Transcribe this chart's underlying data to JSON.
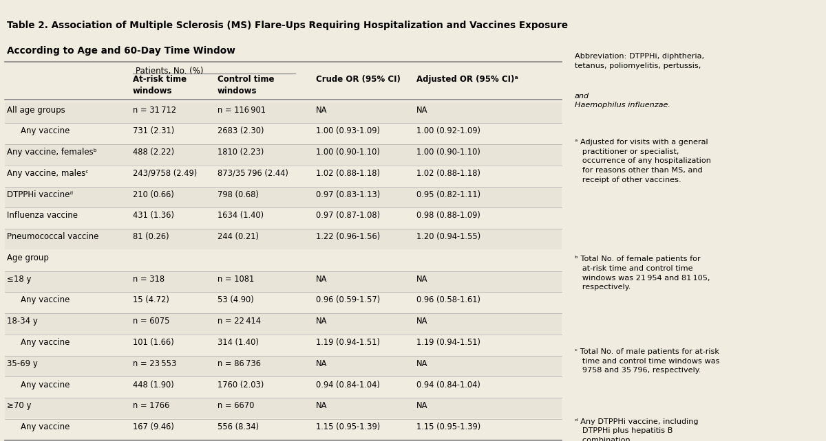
{
  "title_line1": "Table 2. Association of Multiple Sclerosis (MS) Flare-Ups Requiring Hospitalization and Vaccines Exposure",
  "title_line2": "According to Age and 60-Day Time Window",
  "red_bar_color": "#cc2222",
  "bg_color": "#f0ece0",
  "table_bg": "#f0ece0",
  "patients_header": "Patients, No. (%)",
  "col_headers": [
    "At-risk time\nwindows",
    "Control time\nwindows",
    "Crude OR (95% CI)",
    "Adjusted OR (95% CI)ᵃ"
  ],
  "rows": [
    {
      "label": "All age groups",
      "indent": 0,
      "col1": "n = 31 712",
      "col2": "n = 116 901",
      "col3": "NA",
      "col4": "NA",
      "is_subhead": true
    },
    {
      "label": "Any vaccine",
      "indent": 1,
      "col1": "731 (2.31)",
      "col2": "2683 (2.30)",
      "col3": "1.00 (0.93-1.09)",
      "col4": "1.00 (0.92-1.09)",
      "is_subhead": false
    },
    {
      "label": "Any vaccine, femalesᵇ",
      "indent": 0,
      "col1": "488 (2.22)",
      "col2": "1810 (2.23)",
      "col3": "1.00 (0.90-1.10)",
      "col4": "1.00 (0.90-1.10)",
      "is_subhead": false
    },
    {
      "label": "Any vaccine, malesᶜ",
      "indent": 0,
      "col1": "243/9758 (2.49)",
      "col2": "873/35 796 (2.44)",
      "col3": "1.02 (0.88-1.18)",
      "col4": "1.02 (0.88-1.18)",
      "is_subhead": false
    },
    {
      "label": "DTPPHi vaccineᵈ",
      "indent": 0,
      "col1": "210 (0.66)",
      "col2": "798 (0.68)",
      "col3": "0.97 (0.83-1.13)",
      "col4": "0.95 (0.82-1.11)",
      "is_subhead": false
    },
    {
      "label": "Influenza vaccine",
      "indent": 0,
      "col1": "431 (1.36)",
      "col2": "1634 (1.40)",
      "col3": "0.97 (0.87-1.08)",
      "col4": "0.98 (0.88-1.09)",
      "is_subhead": false
    },
    {
      "label": "Pneumococcal vaccine",
      "indent": 0,
      "col1": "81 (0.26)",
      "col2": "244 (0.21)",
      "col3": "1.22 (0.96-1.56)",
      "col4": "1.20 (0.94-1.55)",
      "is_subhead": false
    },
    {
      "label": "Age group",
      "indent": 0,
      "col1": "",
      "col2": "",
      "col3": "",
      "col4": "",
      "is_subhead": true,
      "no_line": true
    },
    {
      "label": "≤18 y",
      "indent": 0,
      "col1": "n = 318",
      "col2": "n = 1081",
      "col3": "NA",
      "col4": "NA",
      "is_subhead": true
    },
    {
      "label": "Any vaccine",
      "indent": 1,
      "col1": "15 (4.72)",
      "col2": "53 (4.90)",
      "col3": "0.96 (0.59-1.57)",
      "col4": "0.96 (0.58-1.61)",
      "is_subhead": false
    },
    {
      "label": "18-34 y",
      "indent": 0,
      "col1": "n = 6075",
      "col2": "n = 22 414",
      "col3": "NA",
      "col4": "NA",
      "is_subhead": true
    },
    {
      "label": "Any vaccine",
      "indent": 1,
      "col1": "101 (1.66)",
      "col2": "314 (1.40)",
      "col3": "1.19 (0.94-1.51)",
      "col4": "1.19 (0.94-1.51)",
      "is_subhead": false
    },
    {
      "label": "35-69 y",
      "indent": 0,
      "col1": "n = 23 553",
      "col2": "n = 86 736",
      "col3": "NA",
      "col4": "NA",
      "is_subhead": true
    },
    {
      "label": "Any vaccine",
      "indent": 1,
      "col1": "448 (1.90)",
      "col2": "1760 (2.03)",
      "col3": "0.94 (0.84-1.04)",
      "col4": "0.94 (0.84-1.04)",
      "is_subhead": false
    },
    {
      "label": "≥70 y",
      "indent": 0,
      "col1": "n = 1766",
      "col2": "n = 6670",
      "col3": "NA",
      "col4": "NA",
      "is_subhead": true
    },
    {
      "label": "Any vaccine",
      "indent": 1,
      "col1": "167 (9.46)",
      "col2": "556 (8.34)",
      "col3": "1.15 (0.95-1.39)",
      "col4": "1.15 (0.95-1.39)",
      "is_subhead": false
    }
  ],
  "fn_abbrev_plain": "Abbreviation: DTPPHi, diphtheria,\ntetanus, poliomyelitis, pertussis, ",
  "fn_abbrev_italic": "and\nHaemophilus influenzae.",
  "fn_a": "ᵃ Adjusted for visits with a general\n   practitioner or specialist,\n   occurrence of any hospitalization\n   for reasons other than MS, and\n   receipt of other vaccines.",
  "fn_b": "ᵇ Total No. of female patients for\n   at-risk time and control time\n   windows was 21 954 and 81 105,\n   respectively.",
  "fn_c": "ᶜ Total No. of male patients for at-risk\n   time and control time windows was\n   9758 and 35 796, respectively.",
  "fn_d": "ᵈ Any DTPPHi vaccine, including\n   DTPPHi plus hepatitis B\n   combination."
}
